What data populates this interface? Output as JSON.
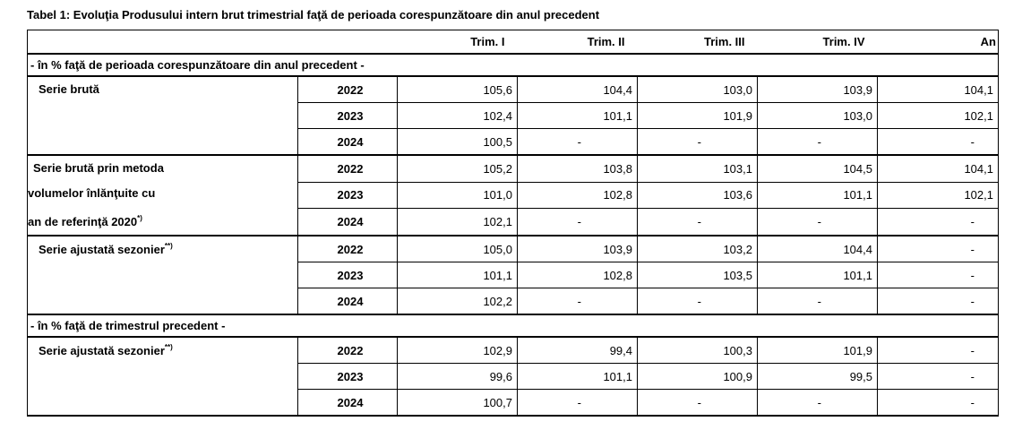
{
  "title": "Tabel 1: Evoluţia Produsului intern brut trimestrial faţă de perioada corespunzătoare din anul precedent",
  "columns": [
    "Trim. I",
    "Trim. II",
    "Trim. III",
    "Trim. IV",
    "An"
  ],
  "sections": [
    {
      "heading": "- în % faţă de perioada corespunzătoare din anul precedent -",
      "groups": [
        {
          "label": "Serie brută",
          "rows": [
            {
              "year": "2022",
              "values": [
                "105,6",
                "104,4",
                "103,0",
                "103,9",
                "104,1"
              ]
            },
            {
              "year": "2023",
              "values": [
                "102,4",
                "101,1",
                "101,9",
                "103,0",
                "102,1"
              ]
            },
            {
              "year": "2024",
              "values": [
                "100,5",
                "-",
                "-",
                "-",
                "-"
              ]
            }
          ]
        },
        {
          "label_lines": [
            "Serie brută prin metoda",
            "volumelor înlănţuite cu",
            "an de referinţă 2020"
          ],
          "label_sup": "*)",
          "rows": [
            {
              "year": "2022",
              "values": [
                "105,2",
                "103,8",
                "103,1",
                "104,5",
                "104,1"
              ]
            },
            {
              "year": "2023",
              "values": [
                "101,0",
                "102,8",
                "103,6",
                "101,1",
                "102,1"
              ]
            },
            {
              "year": "2024",
              "values": [
                "102,1",
                "-",
                "-",
                "-",
                "-"
              ]
            }
          ]
        },
        {
          "label": "Serie ajustată sezonier",
          "label_sup": "**)",
          "rows": [
            {
              "year": "2022",
              "values": [
                "105,0",
                "103,9",
                "103,2",
                "104,4",
                "-"
              ]
            },
            {
              "year": "2023",
              "values": [
                "101,1",
                "102,8",
                "103,5",
                "101,1",
                "-"
              ]
            },
            {
              "year": "2024",
              "values": [
                "102,2",
                "-",
                "-",
                "-",
                "-"
              ]
            }
          ]
        }
      ]
    },
    {
      "heading": "- în % faţă de trimestrul precedent -",
      "groups": [
        {
          "label": "Serie ajustată sezonier",
          "label_sup": "**)",
          "rows": [
            {
              "year": "2022",
              "values": [
                "102,9",
                "99,4",
                "100,3",
                "101,9",
                "-"
              ]
            },
            {
              "year": "2023",
              "values": [
                "99,6",
                "101,1",
                "100,9",
                "99,5",
                "-"
              ]
            },
            {
              "year": "2024",
              "values": [
                "100,7",
                "-",
                "-",
                "-",
                "-"
              ]
            }
          ]
        }
      ]
    }
  ]
}
